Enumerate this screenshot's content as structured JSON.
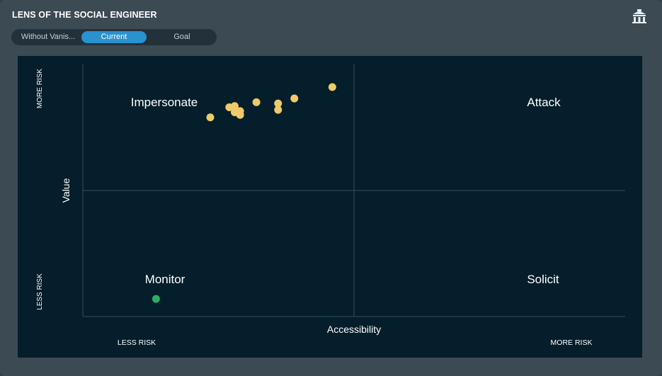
{
  "header": {
    "title": "LENS OF THE SOCIAL ENGINEER",
    "logo_icon": "building-icon"
  },
  "toggle": {
    "options": [
      "Without Vanis...",
      "Current",
      "Goal"
    ],
    "selected": "Current",
    "active_color": "#2a92cf"
  },
  "chart_data": {
    "type": "scatter",
    "xlabel": "Accessibility",
    "ylabel": "Value",
    "x_scale_labels": [
      "LESS RISK",
      "MORE RISK"
    ],
    "y_scale_labels": [
      "LESS RISK",
      "MORE RISK"
    ],
    "xlim": [
      0,
      1
    ],
    "ylim": [
      0,
      1
    ],
    "grid": false,
    "quadrant_dividers": {
      "x": 0.5,
      "y": 0.5
    },
    "quadrants": [
      {
        "name": "Impersonate",
        "position": "top-left"
      },
      {
        "name": "Attack",
        "position": "top-right"
      },
      {
        "name": "Monitor",
        "position": "bottom-left"
      },
      {
        "name": "Solicit",
        "position": "bottom-right"
      }
    ],
    "series": [
      {
        "color": "#f0c969",
        "points": [
          {
            "x": 0.235,
            "y": 0.79
          },
          {
            "x": 0.27,
            "y": 0.83
          },
          {
            "x": 0.28,
            "y": 0.81
          },
          {
            "x": 0.28,
            "y": 0.835
          },
          {
            "x": 0.29,
            "y": 0.815
          },
          {
            "x": 0.29,
            "y": 0.8
          },
          {
            "x": 0.32,
            "y": 0.85
          },
          {
            "x": 0.36,
            "y": 0.845
          },
          {
            "x": 0.36,
            "y": 0.82
          },
          {
            "x": 0.39,
            "y": 0.865
          },
          {
            "x": 0.46,
            "y": 0.91
          }
        ]
      },
      {
        "color": "#2bae66",
        "points": [
          {
            "x": 0.135,
            "y": 0.07
          }
        ]
      }
    ]
  }
}
